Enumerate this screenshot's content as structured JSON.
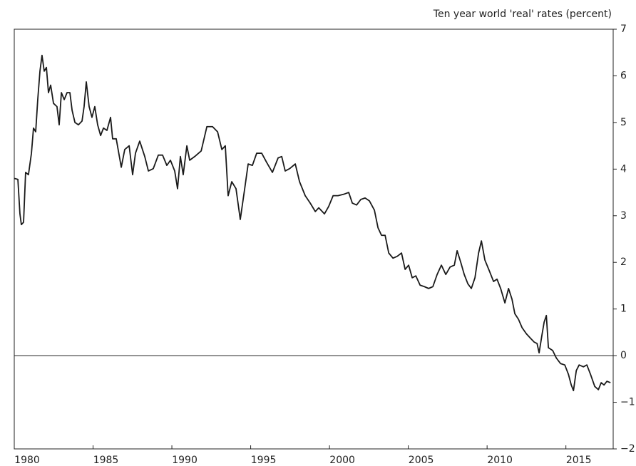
{
  "chart_data": {
    "type": "line",
    "title": "Ten year world 'real' rates (percent)",
    "xlim": [
      1980,
      2018
    ],
    "xticks": [
      1980,
      1985,
      1990,
      1995,
      2000,
      2005,
      2010,
      2015
    ],
    "ylim": [
      -2,
      7
    ],
    "yticks": [
      {
        "value": -2,
        "label": "−2"
      },
      {
        "value": -1,
        "label": "−1"
      },
      0,
      1,
      2,
      3,
      4,
      5,
      6,
      7
    ],
    "zero_line": true,
    "axis_side": "right",
    "series": [
      {
        "color": "#1a1a1a",
        "x": [
          1980.0,
          1980.23,
          1980.36,
          1980.45,
          1980.59,
          1980.72,
          1980.9,
          1981.09,
          1981.22,
          1981.36,
          1981.49,
          1981.63,
          1981.76,
          1981.9,
          1982.04,
          1982.17,
          1982.31,
          1982.49,
          1982.71,
          1982.85,
          1982.99,
          1983.17,
          1983.35,
          1983.53,
          1983.67,
          1983.85,
          1984.07,
          1984.3,
          1984.43,
          1984.57,
          1984.75,
          1984.93,
          1985.11,
          1985.29,
          1985.48,
          1985.66,
          1985.88,
          1986.11,
          1986.24,
          1986.47,
          1986.79,
          1987.01,
          1987.29,
          1987.51,
          1987.69,
          1987.96,
          1988.28,
          1988.51,
          1988.82,
          1989.14,
          1989.41,
          1989.68,
          1989.91,
          1990.18,
          1990.36,
          1990.54,
          1990.72,
          1990.95,
          1991.13,
          1991.45,
          1991.86,
          1992.22,
          1992.58,
          1992.9,
          1993.17,
          1993.39,
          1993.57,
          1993.8,
          1994.07,
          1994.34,
          1994.62,
          1994.84,
          1995.11,
          1995.38,
          1995.7,
          1996.02,
          1996.38,
          1996.74,
          1996.97,
          1997.19,
          1997.47,
          1997.83,
          1998.1,
          1998.46,
          1998.78,
          1999.1,
          1999.32,
          1999.68,
          1999.95,
          2000.23,
          2000.54,
          2000.9,
          2001.22,
          2001.45,
          2001.72,
          2001.99,
          2002.26,
          2002.53,
          2002.85,
          2003.08,
          2003.3,
          2003.53,
          2003.76,
          2004.03,
          2004.3,
          2004.57,
          2004.8,
          2005.02,
          2005.25,
          2005.48,
          2005.75,
          2006.02,
          2006.29,
          2006.56,
          2006.83,
          2007.1,
          2007.38,
          2007.65,
          2007.92,
          2008.1,
          2008.33,
          2008.55,
          2008.78,
          2009.0,
          2009.23,
          2009.46,
          2009.64,
          2009.86,
          2010.14,
          2010.41,
          2010.63,
          2010.86,
          2011.13,
          2011.36,
          2011.58,
          2011.76,
          2011.99,
          2012.22,
          2012.49,
          2012.76,
          2012.99,
          2013.17,
          2013.3,
          2013.48,
          2013.62,
          2013.76,
          2013.89,
          2014.16,
          2014.39,
          2014.66,
          2014.93,
          2015.16,
          2015.34,
          2015.48,
          2015.66,
          2015.84,
          2016.11,
          2016.33,
          2016.56,
          2016.83,
          2017.06,
          2017.24,
          2017.42,
          2017.6,
          2017.83
        ],
        "values": [
          3.8,
          3.78,
          3.04,
          2.81,
          2.86,
          3.93,
          3.88,
          4.34,
          4.88,
          4.8,
          5.49,
          6.1,
          6.44,
          6.1,
          6.18,
          5.64,
          5.8,
          5.41,
          5.34,
          4.95,
          5.64,
          5.49,
          5.64,
          5.64,
          5.26,
          5.0,
          4.95,
          5.03,
          5.34,
          5.87,
          5.34,
          5.11,
          5.34,
          4.95,
          4.72,
          4.88,
          4.83,
          5.11,
          4.65,
          4.65,
          4.04,
          4.42,
          4.5,
          3.88,
          4.34,
          4.6,
          4.27,
          3.96,
          4.01,
          4.3,
          4.3,
          4.08,
          4.19,
          3.96,
          3.58,
          4.27,
          3.88,
          4.5,
          4.19,
          4.27,
          4.39,
          4.91,
          4.91,
          4.8,
          4.42,
          4.5,
          3.43,
          3.73,
          3.58,
          2.92,
          3.58,
          4.11,
          4.08,
          4.34,
          4.34,
          4.14,
          3.93,
          4.24,
          4.27,
          3.96,
          4.01,
          4.11,
          3.73,
          3.43,
          3.27,
          3.09,
          3.17,
          3.04,
          3.2,
          3.43,
          3.43,
          3.46,
          3.5,
          3.27,
          3.23,
          3.35,
          3.38,
          3.32,
          3.12,
          2.74,
          2.58,
          2.58,
          2.2,
          2.09,
          2.13,
          2.2,
          1.85,
          1.94,
          1.67,
          1.71,
          1.51,
          1.48,
          1.44,
          1.48,
          1.74,
          1.94,
          1.74,
          1.9,
          1.94,
          2.25,
          2.0,
          1.74,
          1.54,
          1.44,
          1.67,
          2.2,
          2.46,
          2.05,
          1.82,
          1.59,
          1.64,
          1.44,
          1.13,
          1.44,
          1.21,
          0.9,
          0.78,
          0.6,
          0.47,
          0.37,
          0.29,
          0.26,
          0.06,
          0.44,
          0.72,
          0.86,
          0.17,
          0.11,
          -0.05,
          -0.17,
          -0.2,
          -0.4,
          -0.63,
          -0.75,
          -0.32,
          -0.2,
          -0.24,
          -0.2,
          -0.4,
          -0.66,
          -0.73,
          -0.58,
          -0.63,
          -0.55,
          -0.58
        ]
      }
    ]
  }
}
